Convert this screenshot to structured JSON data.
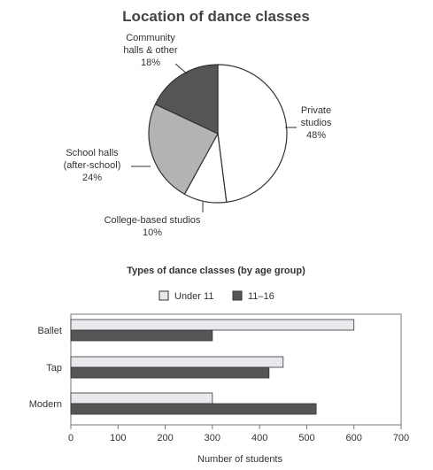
{
  "colors": {
    "white": "#ffffff",
    "light": "#e8e9ec",
    "mid": "#b3b3b3",
    "dark": "#555555",
    "stroke": "#333333"
  },
  "chart_data": [
    {
      "type": "pie",
      "title": "Location of dance classes",
      "slices": [
        {
          "label_lines": [
            "Private",
            "studios",
            "48%"
          ],
          "value": 48,
          "color": "#ffffff"
        },
        {
          "label_lines": [
            "College-based studios",
            "10%"
          ],
          "value": 10,
          "color": "#ffffff"
        },
        {
          "label_lines": [
            "School halls",
            "(after-school)",
            "24%"
          ],
          "value": 24,
          "color": "#b3b3b3"
        },
        {
          "label_lines": [
            "Community",
            "halls & other",
            "18%"
          ],
          "value": 18,
          "color": "#555555"
        }
      ]
    },
    {
      "type": "bar",
      "orientation": "horizontal",
      "title": "Types of dance classes (by age group)",
      "categories": [
        "Ballet",
        "Tap",
        "Modern"
      ],
      "series": [
        {
          "name": "Under 11",
          "values": [
            600,
            450,
            300
          ],
          "color": "#e8e9ec"
        },
        {
          "name": "11–16",
          "values": [
            300,
            420,
            520
          ],
          "color": "#555555"
        }
      ],
      "xlabel": "Number of students",
      "xlim": [
        0,
        700
      ],
      "xticks": [
        "0",
        "100",
        "200",
        "300",
        "400",
        "500",
        "600",
        "700"
      ],
      "legend": "top",
      "grid": false
    }
  ]
}
